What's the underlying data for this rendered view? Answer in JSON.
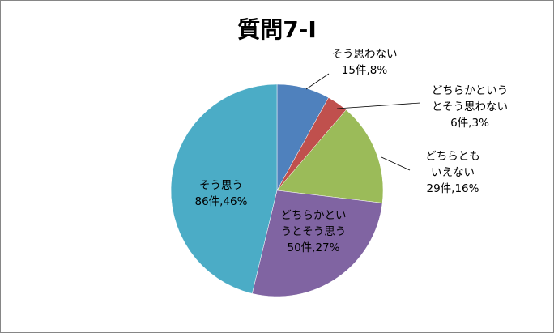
{
  "chart_data": {
    "type": "pie",
    "title": "質問7-I",
    "slices": [
      {
        "lines": [
          "そう思わない",
          "15件,8%"
        ],
        "count": 15,
        "percent": 8,
        "color": "#4F81BD"
      },
      {
        "lines": [
          "どちらかという",
          "とそう思わない",
          "6件,3%"
        ],
        "count": 6,
        "percent": 3,
        "color": "#C0504D"
      },
      {
        "lines": [
          "どちらとも",
          "いえない",
          "29件,16%"
        ],
        "count": 29,
        "percent": 16,
        "color": "#9BBB59"
      },
      {
        "lines": [
          "どちらかとい",
          "うとそう思う",
          "50件,27%"
        ],
        "count": 50,
        "percent": 27,
        "color": "#8064A2"
      },
      {
        "lines": [
          "そう思う",
          "86件,46%"
        ],
        "count": 86,
        "percent": 46,
        "color": "#4BACC6"
      }
    ],
    "start": "12 o'clock",
    "direction": "clockwise",
    "legend": "none"
  }
}
